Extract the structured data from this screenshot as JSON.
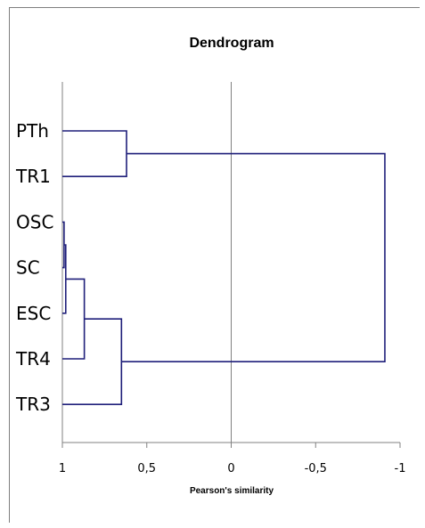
{
  "chart_data": {
    "type": "dendrogram",
    "title": "Dendrogram",
    "xlabel": "Pearson's similarity",
    "xlim": [
      1,
      -1
    ],
    "xticks": [
      1,
      0.5,
      0,
      -0.5,
      -1
    ],
    "xtick_labels": [
      "1",
      "0,5",
      "0",
      "-0,5",
      "-1"
    ],
    "leaves": [
      "PTh",
      "TR1",
      "OSC",
      "SC",
      "ESC",
      "TR4",
      "TR3"
    ],
    "merges": [
      {
        "id": "c1",
        "left": "OSC",
        "right": "SC",
        "similarity": 0.99
      },
      {
        "id": "c2",
        "left": "c1",
        "right": "ESC",
        "similarity": 0.98
      },
      {
        "id": "c3",
        "left": "c2",
        "right": "TR4",
        "similarity": 0.87
      },
      {
        "id": "c4",
        "left": "c3",
        "right": "TR3",
        "similarity": 0.65
      },
      {
        "id": "c5",
        "left": "PTh",
        "right": "TR1",
        "similarity": 0.62
      },
      {
        "id": "c6",
        "left": "c5",
        "right": "c4",
        "similarity": -0.91
      }
    ],
    "line_color": "#1f1f7a",
    "axis_color": "#808080"
  }
}
